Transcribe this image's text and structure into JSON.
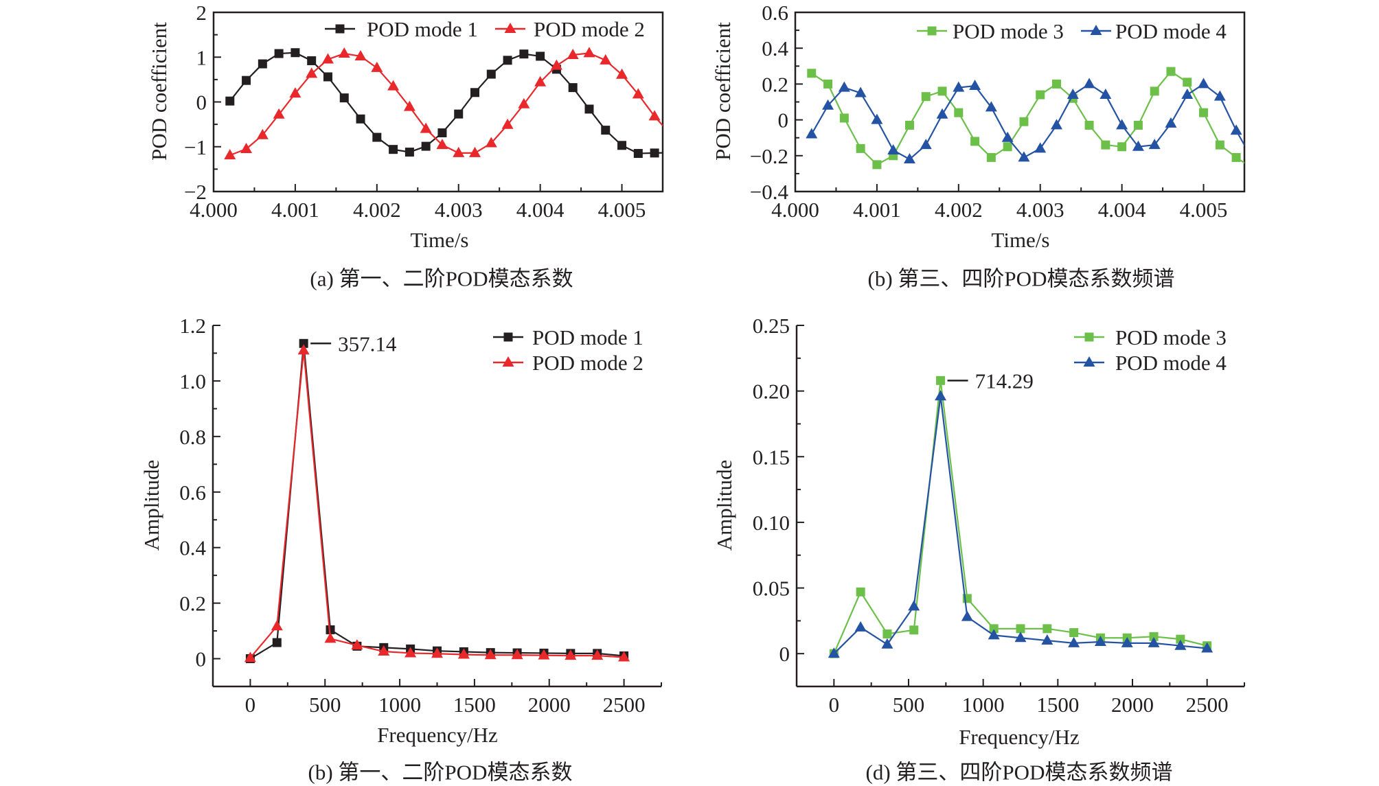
{
  "colors": {
    "mode1": "#231f20",
    "mode2": "#e8282b",
    "mode3": "#6cc04a",
    "mode4": "#2553a3",
    "axis": "#231f20"
  },
  "chart_data": [
    {
      "type": "line",
      "caption": "(a) 第一、二阶POD模态系数",
      "xlabel": "Time/s",
      "ylabel": "POD coefficient",
      "xlim": [
        4.0,
        4.0055
      ],
      "ylim": [
        -2,
        2
      ],
      "xticks": [
        4.0,
        4.001,
        4.002,
        4.003,
        4.004,
        4.005
      ],
      "xtick_labels": [
        "4.000",
        "4.001",
        "4.002",
        "4.003",
        "4.004",
        "4.005"
      ],
      "xminor": 0.0005,
      "yticks": [
        -2,
        -1,
        0,
        1,
        2
      ],
      "ytick_labels": [
        "−2",
        "−1",
        "0",
        "1",
        "2"
      ],
      "yminor": 0.5,
      "legend": "top-right",
      "x": [
        4.0002,
        4.0004,
        4.0006,
        4.0008,
        4.001,
        4.0012,
        4.0014,
        4.0016,
        4.0018,
        4.002,
        4.0022,
        4.0024,
        4.0026,
        4.0028,
        4.003,
        4.0032,
        4.0034,
        4.0036,
        4.0038,
        4.004,
        4.0042,
        4.0044,
        4.0046,
        4.0048,
        4.005,
        4.0052,
        4.0054
      ],
      "series": [
        {
          "name": "POD mode 1",
          "marker": "square",
          "color_key": "mode1",
          "values": [
            0.02,
            0.48,
            0.85,
            1.08,
            1.1,
            0.92,
            0.56,
            0.09,
            -0.38,
            -0.79,
            -1.06,
            -1.12,
            -0.99,
            -0.69,
            -0.27,
            0.21,
            0.62,
            0.93,
            1.07,
            1.02,
            0.73,
            0.32,
            -0.16,
            -0.63,
            -0.97,
            -1.15,
            -1.14
          ]
        },
        {
          "name": "POD mode 2",
          "marker": "triangle",
          "color_key": "mode2",
          "values": [
            -1.19,
            -1.05,
            -0.74,
            -0.28,
            0.19,
            0.63,
            0.95,
            1.08,
            1.02,
            0.76,
            0.35,
            -0.11,
            -0.6,
            -0.96,
            -1.14,
            -1.14,
            -0.92,
            -0.51,
            -0.05,
            0.44,
            0.81,
            1.05,
            1.09,
            0.93,
            0.61,
            0.17,
            -0.32
          ]
        }
      ]
    },
    {
      "type": "line",
      "caption": "(b) 第三、四阶POD模态系数频谱",
      "xlabel": "Time/s",
      "ylabel": "POD coefficient",
      "xlim": [
        4.0,
        4.0055
      ],
      "ylim": [
        -0.4,
        0.6
      ],
      "xticks": [
        4.0,
        4.001,
        4.002,
        4.003,
        4.004,
        4.005
      ],
      "xtick_labels": [
        "4.000",
        "4.001",
        "4.002",
        "4.003",
        "4.004",
        "4.005"
      ],
      "xminor": 0.0005,
      "yticks": [
        -0.4,
        -0.2,
        0,
        0.2,
        0.4,
        0.6
      ],
      "ytick_labels": [
        "−0.4",
        "−0.2",
        "0",
        "0.2",
        "0.4",
        "0.6"
      ],
      "yminor": 0.1,
      "legend": "top-right",
      "x": [
        4.0002,
        4.0004,
        4.0006,
        4.0008,
        4.001,
        4.0012,
        4.0014,
        4.0016,
        4.0018,
        4.002,
        4.0022,
        4.0024,
        4.0026,
        4.0028,
        4.003,
        4.0032,
        4.0034,
        4.0036,
        4.0038,
        4.004,
        4.0042,
        4.0044,
        4.0046,
        4.0048,
        4.005,
        4.0052,
        4.0054
      ],
      "series": [
        {
          "name": "POD mode 3",
          "marker": "square",
          "color_key": "mode3",
          "values": [
            0.26,
            0.2,
            0.01,
            -0.16,
            -0.25,
            -0.2,
            -0.03,
            0.13,
            0.16,
            0.04,
            -0.12,
            -0.21,
            -0.15,
            -0.01,
            0.14,
            0.2,
            0.12,
            -0.03,
            -0.14,
            -0.15,
            -0.03,
            0.16,
            0.27,
            0.21,
            0.04,
            -0.14,
            -0.21
          ]
        },
        {
          "name": "POD mode 4",
          "marker": "triangle",
          "color_key": "mode4",
          "values": [
            -0.08,
            0.08,
            0.18,
            0.15,
            0.0,
            -0.17,
            -0.22,
            -0.14,
            0.03,
            0.18,
            0.19,
            0.07,
            -0.1,
            -0.21,
            -0.16,
            -0.03,
            0.14,
            0.2,
            0.14,
            -0.03,
            -0.15,
            -0.14,
            -0.02,
            0.14,
            0.2,
            0.13,
            -0.06
          ]
        }
      ]
    },
    {
      "type": "line",
      "caption": "(b) 第一、二阶POD模态系数",
      "xlabel": "Frequency/Hz",
      "ylabel": "Amplitude",
      "xlim": [
        -250,
        2750
      ],
      "ylim": [
        -0.1,
        1.2
      ],
      "xticks": [
        0,
        500,
        1000,
        1500,
        2000,
        2500
      ],
      "xtick_labels": [
        "0",
        "500",
        "1000",
        "1500",
        "2000",
        "2500"
      ],
      "xminor": 250,
      "yticks": [
        0,
        0.2,
        0.4,
        0.6,
        0.8,
        1.0,
        1.2
      ],
      "ytick_labels": [
        "0",
        "0.2",
        "0.4",
        "0.6",
        "0.8",
        "1.0",
        "1.2"
      ],
      "yminor": 0.1,
      "legend": "top-right",
      "annotation": {
        "text": "357.14",
        "x": 357.14,
        "y": 1.135
      },
      "x": [
        0,
        178.57,
        357.14,
        535.71,
        714.29,
        892.86,
        1071.43,
        1250,
        1428.57,
        1607.14,
        1785.71,
        1964.29,
        2142.86,
        2321.43,
        2500
      ],
      "series": [
        {
          "name": "POD mode 1",
          "marker": "square",
          "color_key": "mode1",
          "values": [
            0.0,
            0.058,
            1.135,
            0.104,
            0.045,
            0.04,
            0.035,
            0.028,
            0.025,
            0.022,
            0.021,
            0.02,
            0.019,
            0.019,
            0.01
          ]
        },
        {
          "name": "POD mode 2",
          "marker": "triangle",
          "color_key": "mode2",
          "values": [
            0.003,
            0.117,
            1.11,
            0.072,
            0.048,
            0.026,
            0.02,
            0.018,
            0.015,
            0.013,
            0.013,
            0.012,
            0.011,
            0.011,
            0.005
          ]
        }
      ]
    },
    {
      "type": "line",
      "caption": "(d) 第三、四阶POD模态系数频谱",
      "xlabel": "Frequency/Hz",
      "ylabel": "Amplitude",
      "xlim": [
        -250,
        2750
      ],
      "ylim": [
        -0.025,
        0.25
      ],
      "xticks": [
        0,
        500,
        1000,
        1500,
        2000,
        2500
      ],
      "xtick_labels": [
        "0",
        "500",
        "1000",
        "1500",
        "2000",
        "2500"
      ],
      "xminor": 250,
      "yticks": [
        0,
        0.05,
        0.1,
        0.15,
        0.2,
        0.25
      ],
      "ytick_labels": [
        "0",
        "0.05",
        "0.10",
        "0.15",
        "0.20",
        "0.25"
      ],
      "yminor": 0.025,
      "legend": "top-right",
      "annotation": {
        "text": "714.29",
        "x": 714.29,
        "y": 0.208
      },
      "x": [
        0,
        178.57,
        357.14,
        535.71,
        714.29,
        892.86,
        1071.43,
        1250,
        1428.57,
        1607.14,
        1785.71,
        1964.29,
        2142.86,
        2321.43,
        2500
      ],
      "series": [
        {
          "name": "POD mode 3",
          "marker": "square",
          "color_key": "mode3",
          "values": [
            0.0,
            0.047,
            0.015,
            0.018,
            0.208,
            0.042,
            0.019,
            0.019,
            0.019,
            0.016,
            0.012,
            0.012,
            0.013,
            0.011,
            0.006
          ]
        },
        {
          "name": "POD mode 4",
          "marker": "triangle",
          "color_key": "mode4",
          "values": [
            0.0,
            0.02,
            0.007,
            0.036,
            0.196,
            0.028,
            0.014,
            0.012,
            0.01,
            0.008,
            0.009,
            0.008,
            0.008,
            0.006,
            0.004
          ]
        }
      ]
    }
  ]
}
